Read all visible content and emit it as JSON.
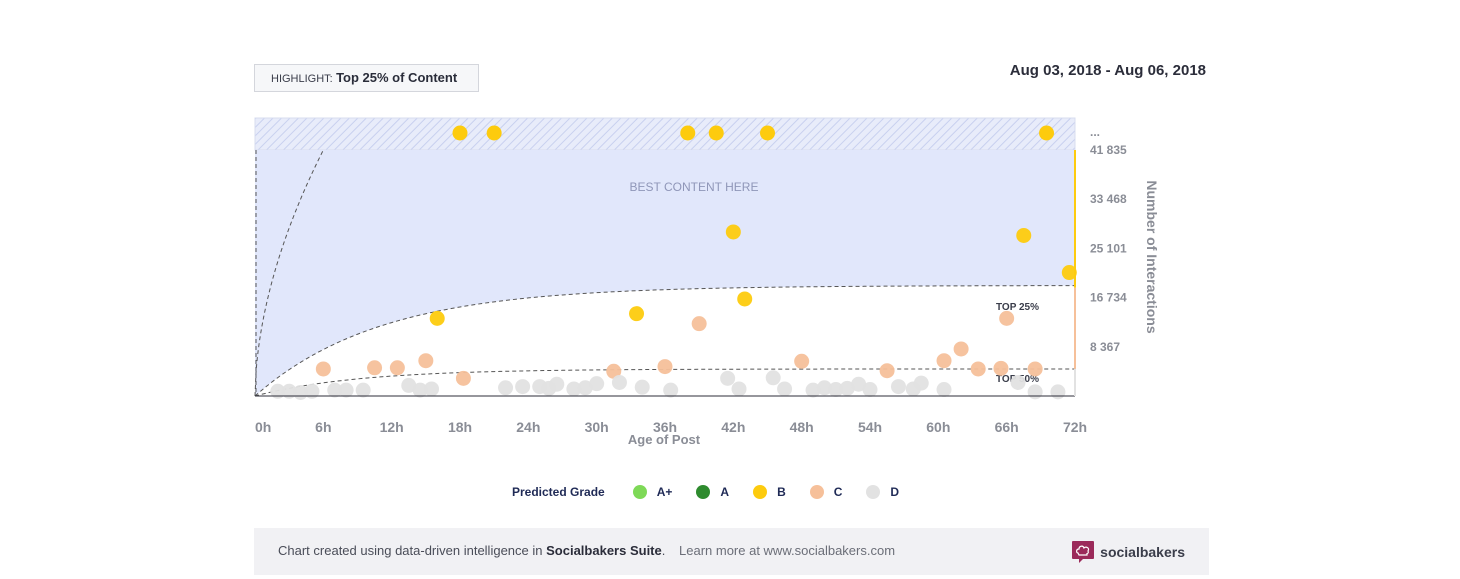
{
  "highlight": {
    "prefix": "HIGHLIGHT:",
    "value": "Top 25% of Content"
  },
  "date_range": "Aug 03, 2018 - Aug 06, 2018",
  "chart_data": {
    "type": "scatter",
    "xlabel": "Age of Post",
    "ylabel": "Number of Interactions",
    "x_ticks": [
      "0h",
      "6h",
      "12h",
      "18h",
      "24h",
      "30h",
      "36h",
      "42h",
      "48h",
      "54h",
      "60h",
      "66h",
      "72h"
    ],
    "y_ticks": [
      "8 367",
      "16 734",
      "25 101",
      "33 468",
      "41 835"
    ],
    "y_overflow_label": "...",
    "xlim": [
      0,
      72
    ],
    "ylim": [
      0,
      41835
    ],
    "zone_label": "BEST CONTENT HERE",
    "threshold_labels": {
      "top25": "TOP 25%",
      "top50": "TOP 50%"
    },
    "colors": {
      "A+": "#7ed957",
      "A": "#2e8b2e",
      "B": "#fdcb0e",
      "C": "#f6c09a",
      "D": "#e2e2e2",
      "zone": "#e1e7fb",
      "overflow_hatch": "#c8d0ef"
    },
    "overflow_points": [
      {
        "x": 18,
        "grade": "B"
      },
      {
        "x": 21,
        "grade": "B"
      },
      {
        "x": 38,
        "grade": "B"
      },
      {
        "x": 40.5,
        "grade": "B"
      },
      {
        "x": 45,
        "grade": "B"
      },
      {
        "x": 69.5,
        "grade": "B"
      }
    ],
    "points": [
      {
        "x": 42,
        "y": 27900,
        "grade": "B"
      },
      {
        "x": 67.5,
        "y": 27300,
        "grade": "B"
      },
      {
        "x": 71.5,
        "y": 21000,
        "grade": "B"
      },
      {
        "x": 43,
        "y": 16500,
        "grade": "B"
      },
      {
        "x": 16,
        "y": 13200,
        "grade": "B"
      },
      {
        "x": 33.5,
        "y": 14000,
        "grade": "B"
      },
      {
        "x": 39,
        "y": 12300,
        "grade": "C"
      },
      {
        "x": 66,
        "y": 13200,
        "grade": "C"
      },
      {
        "x": 6,
        "y": 4600,
        "grade": "C"
      },
      {
        "x": 10.5,
        "y": 4800,
        "grade": "C"
      },
      {
        "x": 12.5,
        "y": 4800,
        "grade": "C"
      },
      {
        "x": 15,
        "y": 6000,
        "grade": "C"
      },
      {
        "x": 18.3,
        "y": 3000,
        "grade": "C"
      },
      {
        "x": 31.5,
        "y": 4200,
        "grade": "C"
      },
      {
        "x": 36,
        "y": 5000,
        "grade": "C"
      },
      {
        "x": 48,
        "y": 5900,
        "grade": "C"
      },
      {
        "x": 55.5,
        "y": 4300,
        "grade": "C"
      },
      {
        "x": 60.5,
        "y": 6000,
        "grade": "C"
      },
      {
        "x": 62,
        "y": 8000,
        "grade": "C"
      },
      {
        "x": 63.5,
        "y": 4600,
        "grade": "C"
      },
      {
        "x": 65.5,
        "y": 4700,
        "grade": "C"
      },
      {
        "x": 68.5,
        "y": 4600,
        "grade": "C"
      },
      {
        "x": 2,
        "y": 800,
        "grade": "D"
      },
      {
        "x": 3,
        "y": 800,
        "grade": "D"
      },
      {
        "x": 4,
        "y": 600,
        "grade": "D"
      },
      {
        "x": 5,
        "y": 800,
        "grade": "D"
      },
      {
        "x": 7,
        "y": 1000,
        "grade": "D"
      },
      {
        "x": 8,
        "y": 1000,
        "grade": "D"
      },
      {
        "x": 9.5,
        "y": 1000,
        "grade": "D"
      },
      {
        "x": 13.5,
        "y": 1800,
        "grade": "D"
      },
      {
        "x": 14.5,
        "y": 1000,
        "grade": "D"
      },
      {
        "x": 15.5,
        "y": 1200,
        "grade": "D"
      },
      {
        "x": 22,
        "y": 1400,
        "grade": "D"
      },
      {
        "x": 23.5,
        "y": 1600,
        "grade": "D"
      },
      {
        "x": 25,
        "y": 1600,
        "grade": "D"
      },
      {
        "x": 25.8,
        "y": 1300,
        "grade": "D"
      },
      {
        "x": 26.5,
        "y": 2000,
        "grade": "D"
      },
      {
        "x": 28,
        "y": 1200,
        "grade": "D"
      },
      {
        "x": 29,
        "y": 1400,
        "grade": "D"
      },
      {
        "x": 30,
        "y": 2100,
        "grade": "D"
      },
      {
        "x": 32,
        "y": 2300,
        "grade": "D"
      },
      {
        "x": 34,
        "y": 1500,
        "grade": "D"
      },
      {
        "x": 36.5,
        "y": 1000,
        "grade": "D"
      },
      {
        "x": 41.5,
        "y": 3000,
        "grade": "D"
      },
      {
        "x": 42.5,
        "y": 1200,
        "grade": "D"
      },
      {
        "x": 45.5,
        "y": 3100,
        "grade": "D"
      },
      {
        "x": 46.5,
        "y": 1200,
        "grade": "D"
      },
      {
        "x": 49,
        "y": 1000,
        "grade": "D"
      },
      {
        "x": 50,
        "y": 1400,
        "grade": "D"
      },
      {
        "x": 51,
        "y": 1100,
        "grade": "D"
      },
      {
        "x": 52,
        "y": 1300,
        "grade": "D"
      },
      {
        "x": 53,
        "y": 2000,
        "grade": "D"
      },
      {
        "x": 54,
        "y": 1100,
        "grade": "D"
      },
      {
        "x": 56.5,
        "y": 1600,
        "grade": "D"
      },
      {
        "x": 57.8,
        "y": 1200,
        "grade": "D"
      },
      {
        "x": 58.5,
        "y": 2200,
        "grade": "D"
      },
      {
        "x": 60.5,
        "y": 1100,
        "grade": "D"
      },
      {
        "x": 67,
        "y": 2300,
        "grade": "D"
      },
      {
        "x": 68.5,
        "y": 700,
        "grade": "D"
      },
      {
        "x": 70.5,
        "y": 700,
        "grade": "D"
      }
    ],
    "legend": {
      "title": "Predicted Grade",
      "items": [
        {
          "label": "A+",
          "color": "#7ed957"
        },
        {
          "label": "A",
          "color": "#2e8b2e"
        },
        {
          "label": "B",
          "color": "#fdcb0e"
        },
        {
          "label": "C",
          "color": "#f6c09a"
        },
        {
          "label": "D",
          "color": "#e2e2e2"
        }
      ]
    }
  },
  "footer": {
    "text_prefix": "Chart created using data-driven intelligence in",
    "brand": "Socialbakers Suite",
    "suffix": ".",
    "learn_more": "Learn more at www.socialbakers.com",
    "logo_text": "socialbakers",
    "logo_color": "#9b2a5a"
  }
}
